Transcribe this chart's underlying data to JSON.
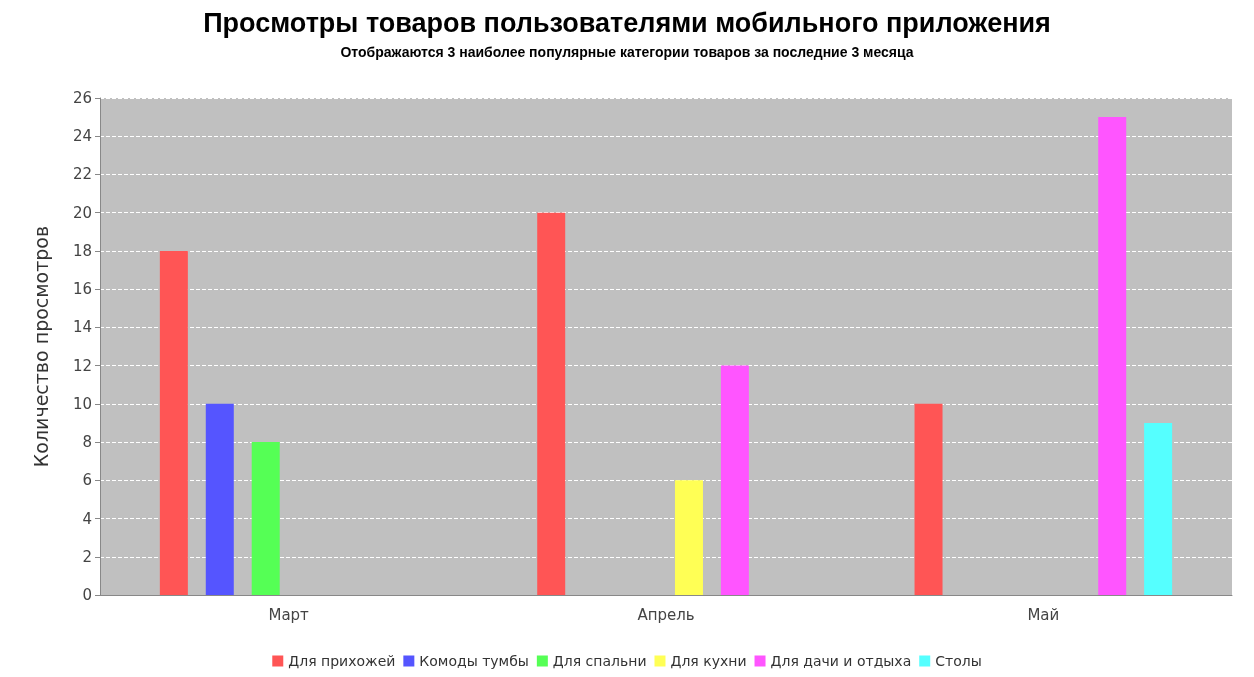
{
  "chart_data": {
    "type": "bar",
    "title": "Просмотры товаров пользователями мобильного приложения",
    "subtitle": "Отображаются 3 наиболее популярные категории товаров за последние 3 месяца",
    "ylabel": "Количество просмотров",
    "categories": [
      "Март",
      "Апрель",
      "Май"
    ],
    "series": [
      {
        "name": "Для прихожей",
        "color": "#ff5555",
        "values": [
          18,
          20,
          10
        ]
      },
      {
        "name": "Комоды тумбы",
        "color": "#5555ff",
        "values": [
          10,
          null,
          null
        ]
      },
      {
        "name": "Для спальни",
        "color": "#55ff55",
        "values": [
          8,
          null,
          null
        ]
      },
      {
        "name": "Для кухни",
        "color": "#ffff55",
        "values": [
          null,
          6,
          null
        ]
      },
      {
        "name": "Для дачи и отдыха",
        "color": "#ff55ff",
        "values": [
          null,
          12,
          25
        ]
      },
      {
        "name": "Столы",
        "color": "#55ffff",
        "values": [
          null,
          null,
          9
        ]
      }
    ],
    "ylim": [
      0,
      26
    ],
    "yticks": [
      0,
      2,
      4,
      6,
      8,
      10,
      12,
      14,
      16,
      18,
      20,
      22,
      24,
      26
    ],
    "grid": "y",
    "legend": "bottom"
  }
}
